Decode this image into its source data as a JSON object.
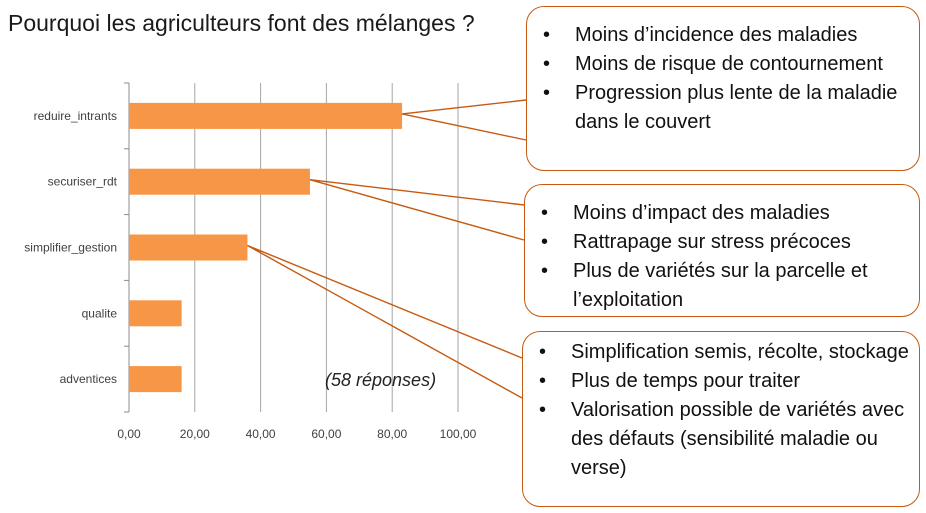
{
  "title": "Pourquoi les agriculteurs font des mélanges ?",
  "note": "(58 réponses)",
  "chart_data": {
    "type": "bar",
    "orientation": "horizontal",
    "categories": [
      "reduire_intrants",
      "securiser_rdt",
      "simplifier_gestion",
      "qualite",
      "adventices"
    ],
    "values": [
      83,
      55,
      36,
      16,
      16
    ],
    "xlim": [
      0,
      100
    ],
    "xticks": [
      "0,00",
      "20,00",
      "40,00",
      "60,00",
      "80,00",
      "100,00"
    ],
    "grid": "vertical",
    "bar_color": "#f79646"
  },
  "callouts": [
    {
      "items": [
        "Moins d’incidence des maladies",
        "Moins de risque de contournement",
        "Progression plus lente de la maladie dans le couvert"
      ],
      "category": "reduire_intrants"
    },
    {
      "items": [
        "Moins d’impact des maladies",
        "Rattrapage sur stress précoces",
        "Plus de variétés sur la parcelle et l’exploitation"
      ],
      "category": "securiser_rdt"
    },
    {
      "items": [
        "Simplification semis, récolte, stockage",
        "Plus de temps pour traiter",
        "Valorisation possible de variétés avec des défauts (sensibilité maladie ou verse)"
      ],
      "category": "simplifier_gestion"
    }
  ],
  "colors": {
    "callout_border": "#c65a11",
    "grid": "#a6a6a6"
  }
}
